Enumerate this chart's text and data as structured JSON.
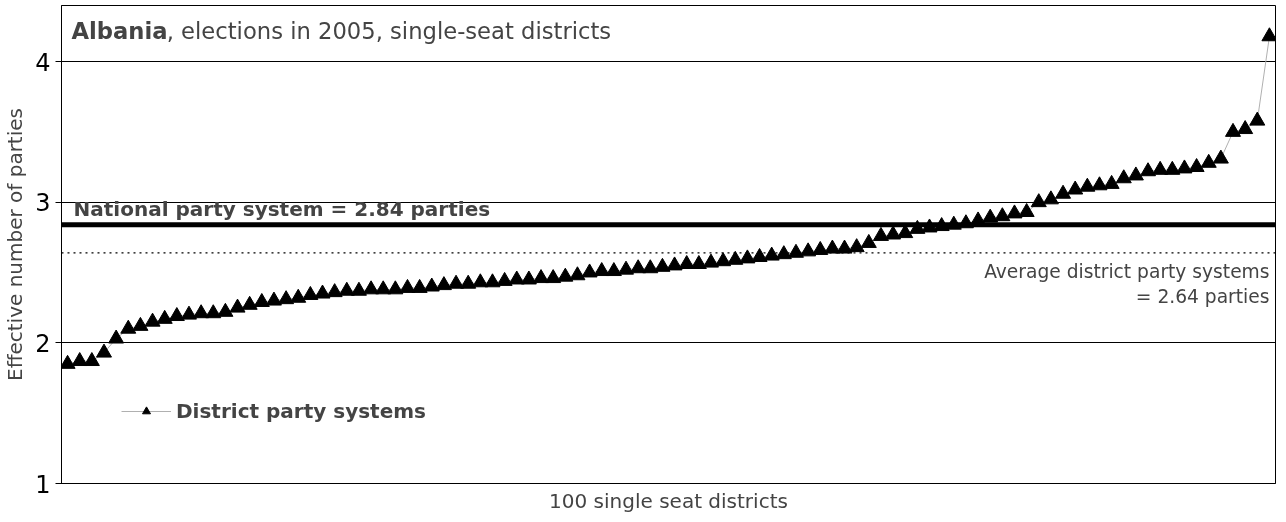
{
  "chart_data": {
    "type": "line",
    "title": "Albania, elections in 2005, single-seat districts",
    "xlabel": "100 single seat districts",
    "ylabel": "Effective number of parties",
    "categories": [
      null,
      null,
      null,
      null,
      null,
      null,
      null,
      null,
      null,
      null,
      null,
      null,
      null,
      null,
      null,
      null,
      null,
      null,
      null,
      null,
      null,
      null,
      null,
      null,
      null,
      null,
      null,
      null,
      null,
      null,
      null,
      null,
      null,
      null,
      null,
      null,
      null,
      null,
      null,
      null,
      null,
      null,
      null,
      null,
      null,
      null,
      null,
      null,
      null,
      null,
      null,
      null,
      null,
      null,
      null,
      null,
      null,
      null,
      null,
      null,
      null,
      null,
      null,
      null,
      null,
      null,
      null,
      null,
      null,
      null,
      null,
      null,
      null,
      null,
      null,
      null,
      null,
      null,
      null,
      null,
      null,
      null,
      null,
      null,
      null,
      null,
      null,
      null,
      null,
      null,
      null,
      null,
      null,
      null,
      null,
      null,
      null,
      null,
      null,
      null
    ],
    "series": [
      {
        "name": "District party systems",
        "color": "#000000",
        "values": [
          1.85,
          1.87,
          1.87,
          1.93,
          2.03,
          2.1,
          2.12,
          2.15,
          2.17,
          2.19,
          2.2,
          2.21,
          2.21,
          2.22,
          2.25,
          2.27,
          2.29,
          2.3,
          2.31,
          2.32,
          2.34,
          2.35,
          2.36,
          2.37,
          2.37,
          2.38,
          2.38,
          2.38,
          2.39,
          2.39,
          2.4,
          2.41,
          2.42,
          2.42,
          2.43,
          2.43,
          2.44,
          2.45,
          2.45,
          2.46,
          2.46,
          2.47,
          2.48,
          2.5,
          2.51,
          2.51,
          2.52,
          2.53,
          2.53,
          2.54,
          2.55,
          2.56,
          2.56,
          2.57,
          2.58,
          2.59,
          2.6,
          2.61,
          2.62,
          2.63,
          2.64,
          2.65,
          2.66,
          2.67,
          2.67,
          2.68,
          2.71,
          2.76,
          2.77,
          2.78,
          2.81,
          2.82,
          2.83,
          2.84,
          2.85,
          2.87,
          2.89,
          2.9,
          2.92,
          2.93,
          3.0,
          3.02,
          3.06,
          3.09,
          3.11,
          3.12,
          3.13,
          3.17,
          3.19,
          3.22,
          3.23,
          3.23,
          3.24,
          3.25,
          3.28,
          3.31,
          3.5,
          3.52,
          3.58,
          4.18
        ]
      }
    ],
    "ylim": [
      1,
      4.4
    ],
    "yticks": [
      1,
      2,
      3,
      4
    ],
    "grid": "y",
    "tick_labels": "y",
    "marker": "triangle",
    "legend": "bottom left",
    "ref_lines": [
      {
        "axis": "y",
        "value": 2.84,
        "label": "National party system = 2.84 parties",
        "color": "#000000",
        "line_style": "solid"
      },
      {
        "axis": "y",
        "value": 2.64,
        "label": "Average district party systems\n= 2.64 parties",
        "color": "#000000",
        "line_style": "dotted"
      }
    ]
  }
}
